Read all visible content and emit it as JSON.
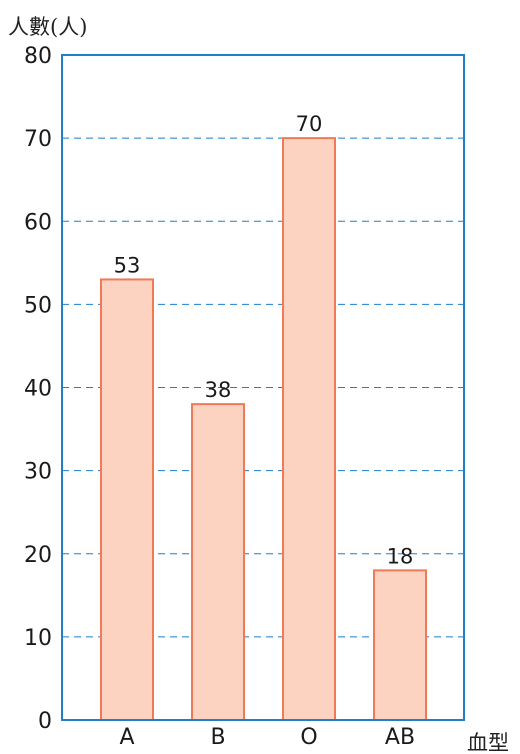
{
  "chart_data": {
    "type": "bar",
    "ylabel": "人數(人)",
    "xlabel": "血型",
    "categories": [
      "A",
      "B",
      "O",
      "AB"
    ],
    "values": [
      53,
      38,
      70,
      18
    ],
    "ylim": [
      0,
      80
    ],
    "yticks": [
      0,
      10,
      20,
      30,
      40,
      50,
      60,
      70,
      80
    ],
    "grid": true,
    "data_labels": true
  },
  "colors": {
    "bar_fill": "#fbd3c0",
    "bar_stroke": "#f07a58",
    "axis": "#1f7fc8",
    "grid": "#1f7fc8"
  }
}
